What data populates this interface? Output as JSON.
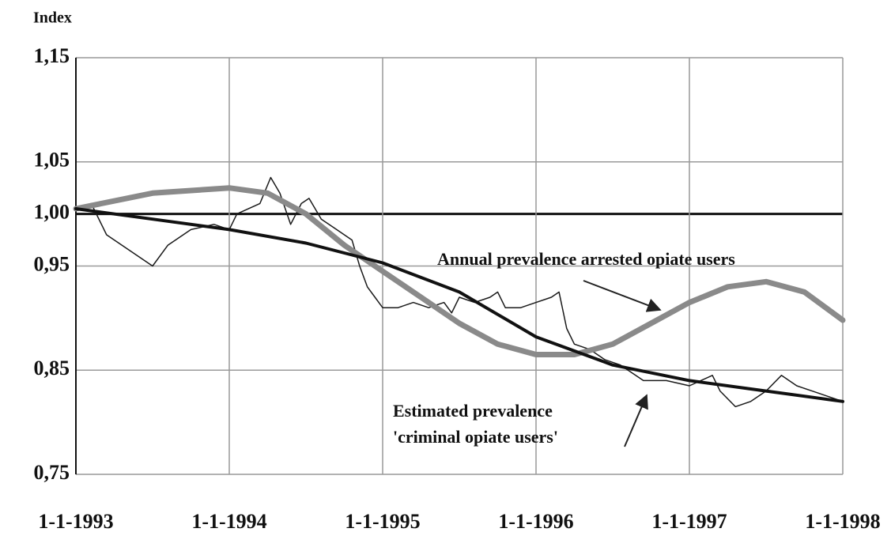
{
  "chart_data": {
    "type": "line",
    "y_axis_label": "Index",
    "xlim": [
      1993,
      1998
    ],
    "xticks": [
      {
        "value": 1993,
        "label": "1-1-1993"
      },
      {
        "value": 1994,
        "label": "1-1-1994"
      },
      {
        "value": 1995,
        "label": "1-1-1995"
      },
      {
        "value": 1996,
        "label": "1-1-1996"
      },
      {
        "value": 1997,
        "label": "1-1-1997"
      },
      {
        "value": 1998,
        "label": "1-1-1998"
      }
    ],
    "ylim": [
      0.75,
      1.15
    ],
    "yticks": [
      {
        "value": 0.75,
        "label": "0,75"
      },
      {
        "value": 0.85,
        "label": "0,85"
      },
      {
        "value": 0.95,
        "label": "0,95"
      },
      {
        "value": 1.0,
        "label": "1,00"
      },
      {
        "value": 1.05,
        "label": "1,05"
      },
      {
        "value": 1.15,
        "label": "1,15"
      }
    ],
    "grid": true,
    "reference_line": 1.0,
    "series": [
      {
        "color": "#1a1a1a",
        "width": 1.5,
        "x": [
          1993,
          1993.1,
          1993.2,
          1993.35,
          1993.5,
          1993.6,
          1993.75,
          1993.9,
          1994,
          1994.05,
          1994.2,
          1994.27,
          1994.33,
          1994.4,
          1994.47,
          1994.52,
          1994.6,
          1994.7,
          1994.8,
          1994.85,
          1994.9,
          1994.95,
          1995,
          1995.1,
          1995.2,
          1995.3,
          1995.4,
          1995.45,
          1995.5,
          1995.6,
          1995.7,
          1995.75,
          1995.8,
          1995.9,
          1996,
          1996.1,
          1996.15,
          1996.2,
          1996.25,
          1996.35,
          1996.45,
          1996.55,
          1996.6,
          1996.7,
          1996.85,
          1997,
          1997.15,
          1997.2,
          1997.3,
          1997.4,
          1997.5,
          1997.6,
          1997.7,
          1997.8,
          1997.9,
          1998
        ],
        "values": [
          1.005,
          1.01,
          0.98,
          0.965,
          0.95,
          0.97,
          0.985,
          0.99,
          0.985,
          1.0,
          1.01,
          1.035,
          1.02,
          0.99,
          1.01,
          1.015,
          0.995,
          0.985,
          0.975,
          0.95,
          0.93,
          0.92,
          0.91,
          0.91,
          0.915,
          0.91,
          0.915,
          0.905,
          0.92,
          0.915,
          0.92,
          0.925,
          0.91,
          0.91,
          0.915,
          0.92,
          0.925,
          0.89,
          0.875,
          0.87,
          0.86,
          0.855,
          0.85,
          0.84,
          0.84,
          0.835,
          0.845,
          0.83,
          0.815,
          0.82,
          0.83,
          0.845,
          0.835,
          0.83,
          0.825,
          0.82
        ]
      },
      {
        "color": "#8a8a8a",
        "width": 7,
        "x": [
          1993,
          1993.5,
          1994,
          1994.25,
          1994.5,
          1994.75,
          1995,
          1995.25,
          1995.5,
          1995.75,
          1996,
          1996.25,
          1996.5,
          1996.75,
          1997,
          1997.25,
          1997.5,
          1997.75,
          1998
        ],
        "values": [
          1.005,
          1.02,
          1.025,
          1.02,
          1.0,
          0.97,
          0.945,
          0.92,
          0.895,
          0.875,
          0.865,
          0.865,
          0.875,
          0.895,
          0.915,
          0.93,
          0.935,
          0.925,
          0.898
        ]
      },
      {
        "color": "#111111",
        "width": 4,
        "x": [
          1993,
          1993.5,
          1994,
          1994.5,
          1995,
          1995.5,
          1996,
          1996.5,
          1997,
          1997.5,
          1998
        ],
        "values": [
          1.005,
          0.995,
          0.985,
          0.972,
          0.953,
          0.925,
          0.882,
          0.855,
          0.84,
          0.83,
          0.82
        ]
      }
    ],
    "annotations": [
      {
        "lines": [
          "Annual prevalence arrested opiate users"
        ]
      },
      {
        "lines": [
          "Estimated prevalence",
          "'criminal opiate users'"
        ]
      }
    ]
  }
}
